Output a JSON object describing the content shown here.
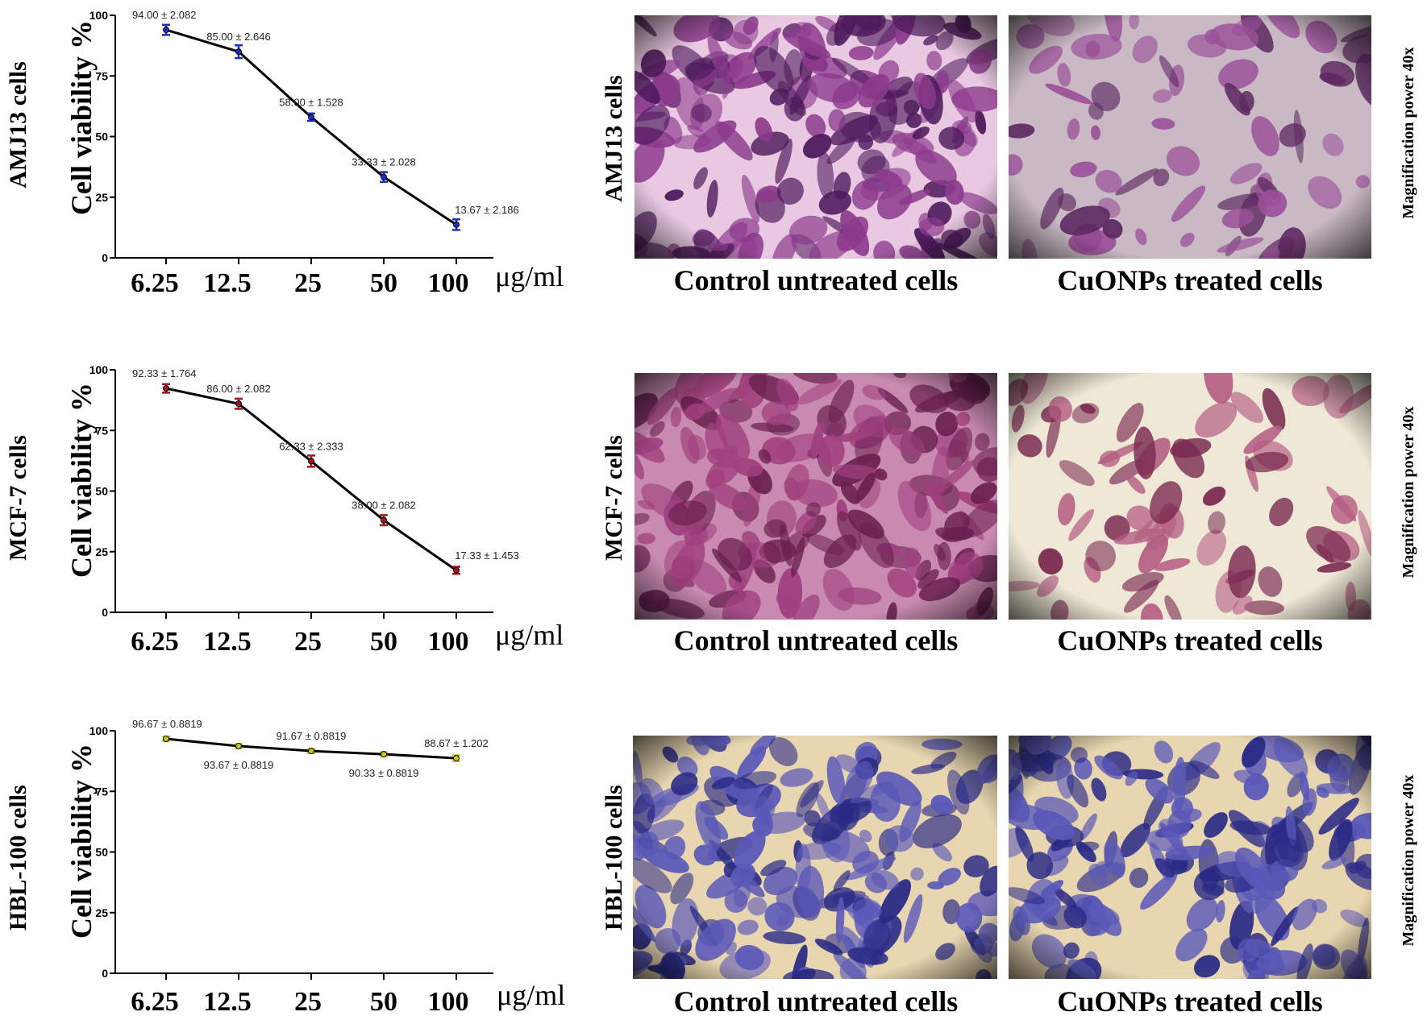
{
  "figure": {
    "x_unit": "μg/ml",
    "y_label": "Cell viability %",
    "magnification": "Magnification power 40x",
    "control_caption": "Control untreated cells",
    "treated_caption": "CuONPs treated cells"
  },
  "chart_data": [
    {
      "type": "line",
      "cell_line": "AMJ13 cells",
      "categories": [
        "6.25",
        "12.5",
        "25",
        "50",
        "100"
      ],
      "values": [
        94.0,
        85.0,
        58.0,
        33.33,
        13.67
      ],
      "errors": [
        2.082,
        2.646,
        1.528,
        2.028,
        2.186
      ],
      "labels": [
        "94.00 ± 2.082",
        "85.00 ± 2.646",
        "58.00 ± 1.528",
        "33.33 ± 2.028",
        "13.67 ± 2.186"
      ],
      "yticks": [
        "0",
        "25",
        "50",
        "75",
        "100"
      ],
      "ylim": [
        0,
        100
      ],
      "xlabel": "μg/ml",
      "ylabel": "Cell viability %",
      "marker_color": "#1a2fc8"
    },
    {
      "type": "line",
      "cell_line": "MCF-7 cells",
      "categories": [
        "6.25",
        "12.5",
        "25",
        "50",
        "100"
      ],
      "values": [
        92.33,
        86.0,
        62.33,
        38.0,
        17.33
      ],
      "errors": [
        1.764,
        2.082,
        2.333,
        2.082,
        1.453
      ],
      "labels": [
        "92.33 ± 1.764",
        "86.00 ± 2.082",
        "62.33 ± 2.333",
        "38.00 ± 2.082",
        "17.33 ± 1.453"
      ],
      "yticks": [
        "0",
        "25",
        "50",
        "75",
        "100"
      ],
      "ylim": [
        0,
        100
      ],
      "xlabel": "μg/ml",
      "ylabel": "Cell viability %",
      "marker_color": "#a8141c"
    },
    {
      "type": "line",
      "cell_line": "HBL-100 cells",
      "categories": [
        "6.25",
        "12.5",
        "25",
        "50",
        "100"
      ],
      "values": [
        96.67,
        93.67,
        91.67,
        90.33,
        88.67
      ],
      "errors": [
        0.8819,
        0.8819,
        0.8819,
        0.8819,
        1.202
      ],
      "labels": [
        "96.67 ± 0.8819",
        "93.67 ± 0.8819",
        "91.67 ± 0.8819",
        "90.33 ± 0.8819",
        "88.67 ± 1.202"
      ],
      "label_sides": [
        "above",
        "below",
        "above",
        "below",
        "above"
      ],
      "yticks": [
        "0",
        "25",
        "50",
        "75",
        "100"
      ],
      "ylim": [
        0,
        100
      ],
      "xlabel": "μg/ml",
      "ylabel": "Cell viability %",
      "marker_color": "#c8c81e"
    }
  ],
  "micrographs": [
    {
      "cell_line": "AMJ13 cells",
      "condition": "control",
      "background": "#e9c9e2",
      "stain": "#8c3a8c",
      "dark": "#4e1a5c"
    },
    {
      "cell_line": "AMJ13 cells",
      "condition": "treated",
      "background": "#c9b9c4",
      "stain": "#9a4f98",
      "dark": "#5e2a62"
    },
    {
      "cell_line": "MCF-7 cells",
      "condition": "control",
      "background": "#c88ab0",
      "stain": "#a0407e",
      "dark": "#6a2050"
    },
    {
      "cell_line": "MCF-7 cells",
      "condition": "treated",
      "background": "#efe8d6",
      "stain": "#b45c82",
      "dark": "#7a2a50"
    },
    {
      "cell_line": "HBL-100 cells",
      "condition": "control",
      "background": "#e8d6b0",
      "stain": "#5a58b8",
      "dark": "#2a2a86"
    },
    {
      "cell_line": "HBL-100 cells",
      "condition": "treated",
      "background": "#e8d6b0",
      "stain": "#5a58b8",
      "dark": "#2a2a86"
    }
  ]
}
